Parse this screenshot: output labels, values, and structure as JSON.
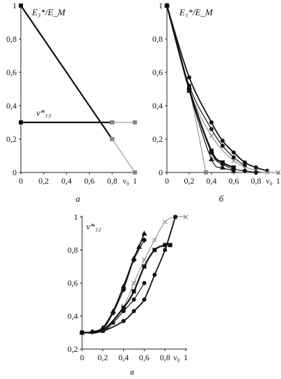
{
  "chart_data": [
    {
      "type": "line",
      "panel_label": "а",
      "ylabel": "E₃*/E_M",
      "xlabel": "ν₀",
      "x_ticks": [
        "0",
        "0,2",
        "0,4",
        "0,6",
        "0,8",
        "1"
      ],
      "y_ticks": [
        "0",
        "0,2",
        "0,4",
        "0,6",
        "0,8",
        "1"
      ],
      "xlim": [
        0,
        1
      ],
      "ylim": [
        0,
        1
      ],
      "grid": false,
      "annotations": [
        {
          "text": "ν*₁₃",
          "x": 0.2,
          "y": 0.34
        }
      ],
      "series": [
        {
          "stroke": "#111111",
          "width": 2.2,
          "marker": "square",
          "x": [
            0,
            0.8
          ],
          "y": [
            1,
            0.2
          ]
        },
        {
          "stroke": "#888888",
          "width": 1,
          "marker": "square",
          "x": [
            0.8,
            1
          ],
          "y": [
            0.2,
            0
          ]
        },
        {
          "stroke": "#111111",
          "width": 2.2,
          "marker": "square",
          "x": [
            0,
            0.8
          ],
          "y": [
            0.3,
            0.3
          ]
        },
        {
          "stroke": "#888888",
          "width": 1,
          "marker": "square",
          "x": [
            0.8,
            1
          ],
          "y": [
            0.3,
            0.3
          ]
        }
      ]
    },
    {
      "type": "line",
      "panel_label": "б",
      "ylabel": "E₁*/E_M",
      "xlabel": "ν₀",
      "x_ticks": [
        "0",
        "0,2",
        "0,4",
        "0,6",
        "0,8",
        "1"
      ],
      "y_ticks": [
        "0",
        "0,2",
        "0,4",
        "0,6",
        "0,8",
        "1"
      ],
      "xlim": [
        0,
        1
      ],
      "ylim": [
        0,
        1
      ],
      "grid": false,
      "series": [
        {
          "stroke": "#888888",
          "width": 1,
          "marker": "square",
          "x": [
            0,
            0.2,
            0.35
          ],
          "y": [
            1,
            0.5,
            0
          ]
        },
        {
          "stroke": "#111111",
          "width": 1.8,
          "marker": "circle",
          "x": [
            0,
            0.2,
            0.4,
            0.5,
            0.6,
            0.7,
            0.8,
            0.9
          ],
          "y": [
            1,
            0.57,
            0.3,
            0.19,
            0.12,
            0.06,
            0.03,
            0.01
          ]
        },
        {
          "stroke": "#111111",
          "width": 1.2,
          "marker": "circle",
          "x": [
            0,
            0.2,
            0.4,
            0.5,
            0.6,
            0.7
          ],
          "y": [
            1,
            0.52,
            0.26,
            0.16,
            0.09,
            0.04
          ]
        },
        {
          "stroke": "#888888",
          "width": 1,
          "marker": "cross",
          "x": [
            0,
            0.2,
            0.4,
            0.6,
            0.8,
            0.9,
            1
          ],
          "y": [
            1,
            0.5,
            0.22,
            0.07,
            0.01,
            0,
            0
          ]
        },
        {
          "stroke": "#111111",
          "width": 2.2,
          "marker": "square",
          "x": [
            0,
            0.2,
            0.4,
            0.5,
            0.6
          ],
          "y": [
            1,
            0.5,
            0.13,
            0.06,
            0.03
          ]
        },
        {
          "stroke": "#111111",
          "width": 1.2,
          "marker": "triangle",
          "x": [
            0,
            0.2,
            0.4,
            0.5,
            0.6
          ],
          "y": [
            1,
            0.49,
            0.08,
            0.03,
            0.01
          ]
        },
        {
          "stroke": "#111111",
          "width": 1.2,
          "marker": "diamond",
          "x": [
            0,
            0.2,
            0.4,
            0.5,
            0.6,
            0.7,
            0.8
          ],
          "y": [
            1,
            0.5,
            0.12,
            0.05,
            0.02,
            0.01,
            0
          ]
        }
      ]
    },
    {
      "type": "line",
      "panel_label": "в",
      "ylabel": "ν*₁₂",
      "xlabel": "ν₀",
      "x_ticks": [
        "0",
        "0,2",
        "0,4",
        "0,6",
        "0,8",
        "1"
      ],
      "y_ticks": [
        "0,2",
        "0,4",
        "0,6",
        "0,8",
        "1"
      ],
      "xlim": [
        0,
        1
      ],
      "ylim": [
        0.2,
        1
      ],
      "grid": false,
      "series": [
        {
          "stroke": "#111111",
          "width": 1.8,
          "marker": "triangle",
          "x": [
            0,
            0.1,
            0.2,
            0.3,
            0.4,
            0.5,
            0.55,
            0.6
          ],
          "y": [
            0.3,
            0.305,
            0.33,
            0.43,
            0.58,
            0.75,
            0.82,
            0.9
          ]
        },
        {
          "stroke": "#111111",
          "width": 1.2,
          "marker": "diamond",
          "x": [
            0,
            0.1,
            0.2,
            0.3,
            0.4,
            0.5,
            0.6
          ],
          "y": [
            0.3,
            0.305,
            0.32,
            0.42,
            0.56,
            0.74,
            0.86
          ]
        },
        {
          "stroke": "#888888",
          "width": 1,
          "marker": "cross",
          "x": [
            0,
            0.2,
            0.4,
            0.5,
            0.6,
            0.7,
            0.8,
            0.9,
            1
          ],
          "y": [
            0.3,
            0.31,
            0.46,
            0.6,
            0.74,
            0.86,
            0.97,
            1,
            1
          ]
        },
        {
          "stroke": "#111111",
          "width": 2.2,
          "marker": "square",
          "x": [
            0,
            0.2,
            0.4,
            0.5,
            0.6,
            0.7,
            0.8,
            0.85
          ],
          "y": [
            0.3,
            0.315,
            0.45,
            0.55,
            0.7,
            0.8,
            0.83,
            0.83
          ]
        },
        {
          "stroke": "#111111",
          "width": 1.8,
          "marker": "circle",
          "x": [
            0,
            0.2,
            0.4,
            0.5,
            0.6,
            0.7,
            0.8,
            0.9
          ],
          "y": [
            0.3,
            0.31,
            0.37,
            0.43,
            0.5,
            0.65,
            0.8,
            1
          ]
        },
        {
          "stroke": "#111111",
          "width": 1.2,
          "marker": "circle",
          "x": [
            0,
            0.2,
            0.3,
            0.4,
            0.5,
            0.6
          ],
          "y": [
            0.3,
            0.31,
            0.36,
            0.43,
            0.5,
            0.6
          ]
        }
      ]
    }
  ]
}
